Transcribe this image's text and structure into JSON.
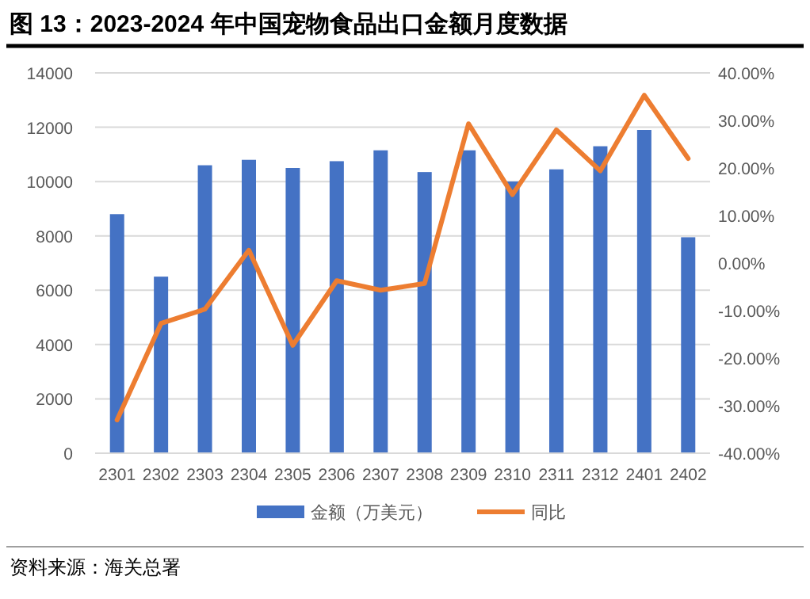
{
  "chart_data": {
    "type": "bar",
    "title": "图 13：2023-2024 年中国宠物食品出口金额月度数据",
    "categories": [
      "2301",
      "2302",
      "2303",
      "2304",
      "2305",
      "2306",
      "2307",
      "2308",
      "2309",
      "2310",
      "2311",
      "2312",
      "2401",
      "2402"
    ],
    "series": [
      {
        "name": "金额（万美元）",
        "color": "#4472c4",
        "values": [
          8800,
          6500,
          10600,
          10800,
          10500,
          10750,
          11150,
          10350,
          11150,
          10000,
          10450,
          11300,
          11900,
          7950
        ]
      },
      {
        "name": "同比",
        "type": "line",
        "axis": "y2",
        "color": "#ed7d31",
        "values": [
          -33,
          -12.7,
          -9.7,
          2.7,
          -17.3,
          -3.7,
          -5.7,
          -4.3,
          29.3,
          14.4,
          28,
          19.4,
          35.3,
          22
        ]
      }
    ],
    "ylim": [
      0,
      14000
    ],
    "yticks": [
      0,
      2000,
      4000,
      6000,
      8000,
      10000,
      12000,
      14000
    ],
    "y2lim": [
      -40,
      40
    ],
    "y2ticks": [
      {
        "value": -40,
        "label": "-40.00%"
      },
      {
        "value": -30,
        "label": "-30.00%"
      },
      {
        "value": -20,
        "label": "-20.00%"
      },
      {
        "value": -10,
        "label": "-10.00%"
      },
      {
        "value": 0,
        "label": "0.00%"
      },
      {
        "value": 10,
        "label": "10.00%"
      },
      {
        "value": 20,
        "label": "20.00%"
      },
      {
        "value": 30,
        "label": "30.00%"
      },
      {
        "value": 40,
        "label": "40.00%"
      }
    ],
    "grid": "y",
    "legend": "bottom",
    "marker": "none",
    "annotations": [
      "资料来源：海关总署"
    ]
  }
}
